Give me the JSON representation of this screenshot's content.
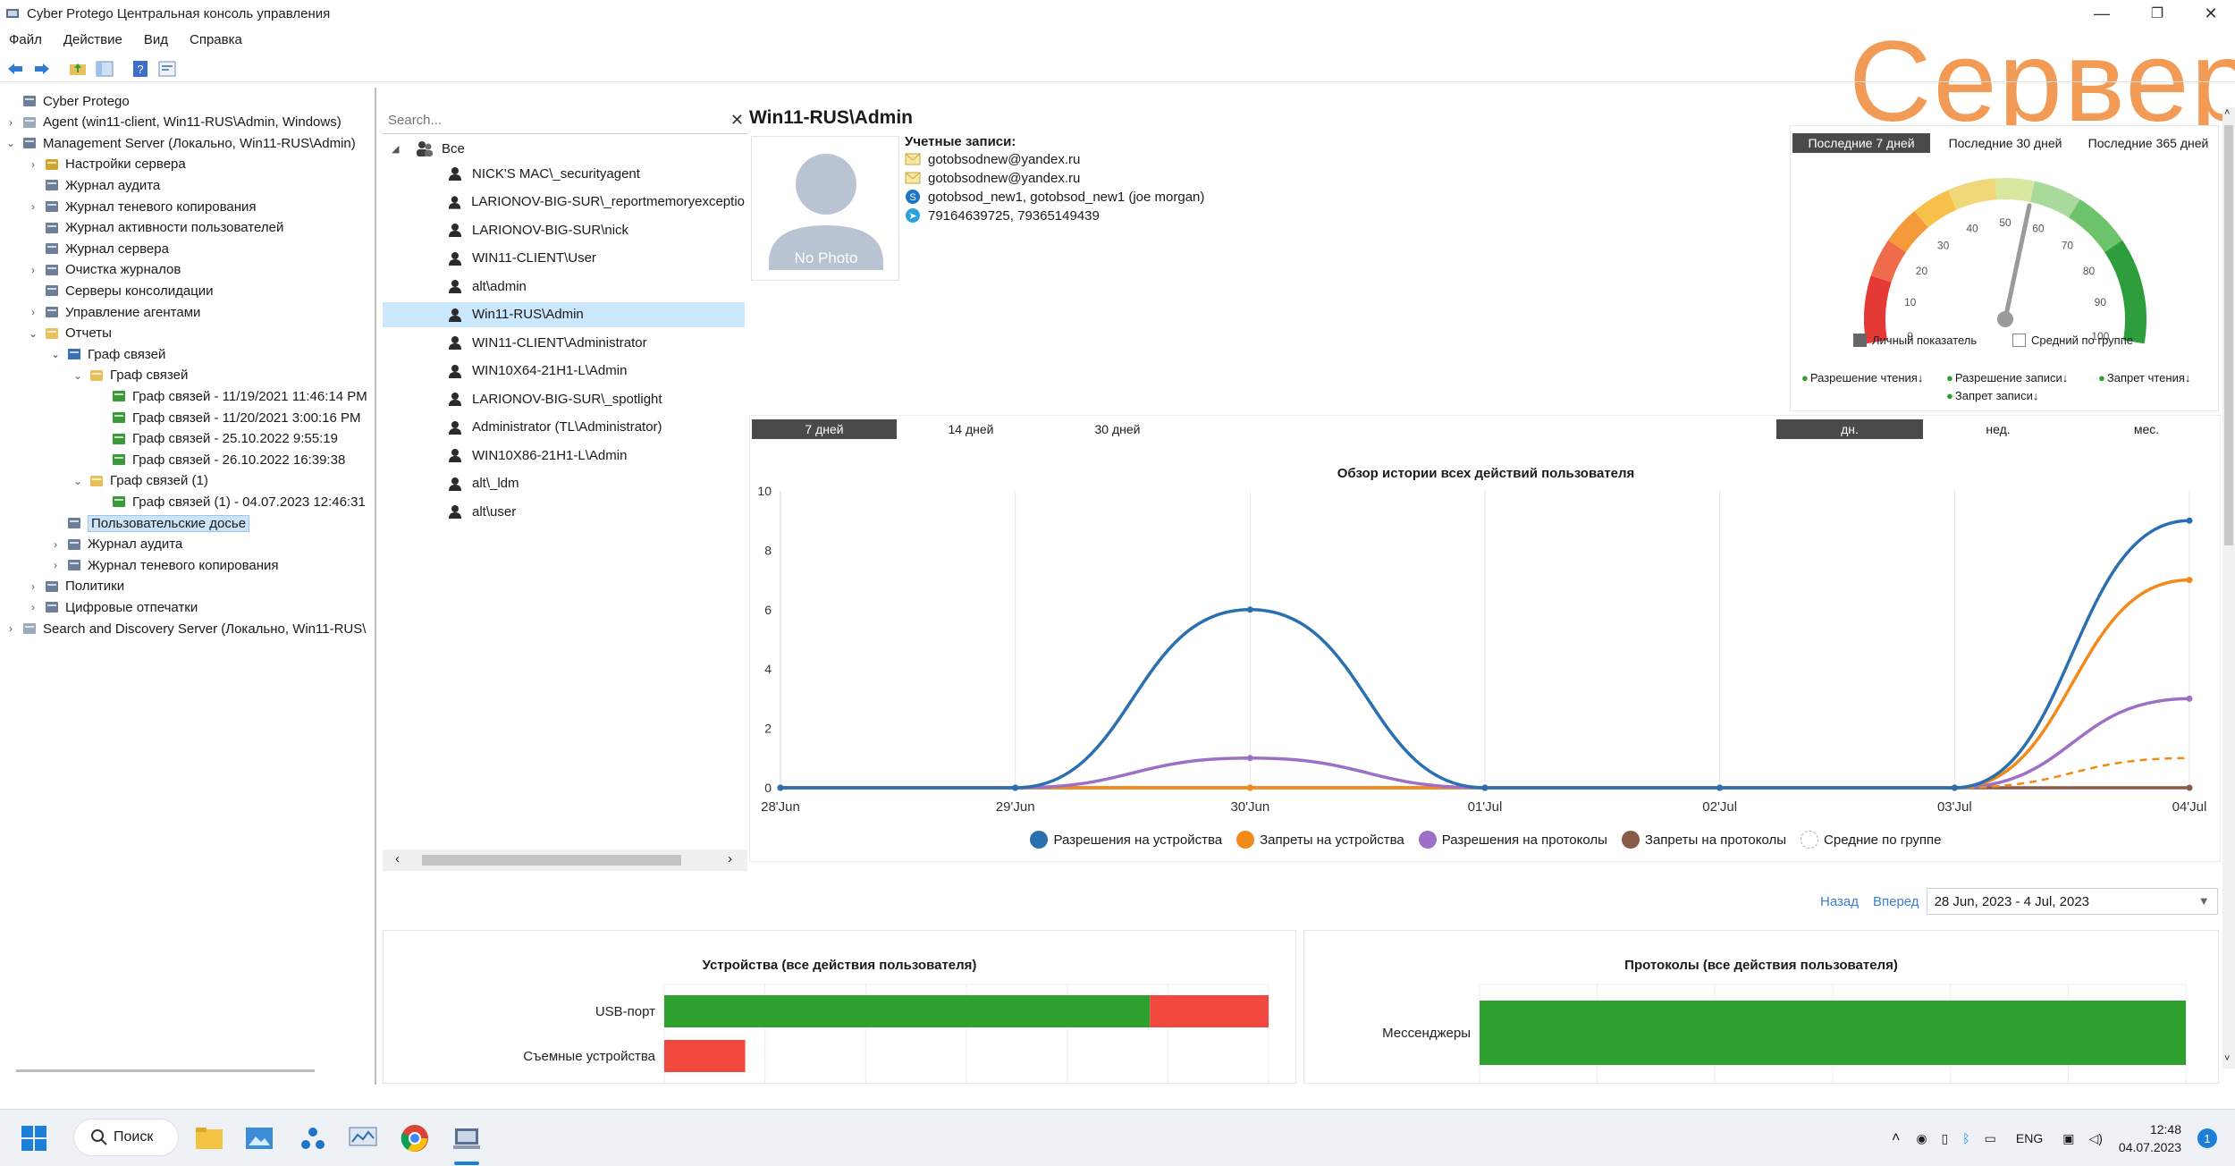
{
  "window": {
    "title": "Cyber Protego Центральная консоль управления",
    "minimize": "—",
    "maximize": "❐",
    "close": "✕"
  },
  "watermark": "Сервер",
  "menu": [
    "Файл",
    "Действие",
    "Вид",
    "Справка"
  ],
  "tree": [
    {
      "label": "Cyber Protego",
      "level": 0,
      "exp": ""
    },
    {
      "label": "Agent (win11-client, Win11-RUS\\Admin, Windows)",
      "level": 0,
      "exp": "›"
    },
    {
      "label": "Management Server (Локально, Win11-RUS\\Admin)",
      "level": 0,
      "exp": "⌄"
    },
    {
      "label": "Настройки сервера",
      "level": 1,
      "exp": "›"
    },
    {
      "label": "Журнал аудита",
      "level": 1,
      "exp": ""
    },
    {
      "label": "Журнал теневого копирования",
      "level": 1,
      "exp": "›"
    },
    {
      "label": "Журнал активности пользователей",
      "level": 1,
      "exp": ""
    },
    {
      "label": "Журнал сервера",
      "level": 1,
      "exp": ""
    },
    {
      "label": "Очистка журналов",
      "level": 1,
      "exp": "›"
    },
    {
      "label": "Серверы консолидации",
      "level": 1,
      "exp": ""
    },
    {
      "label": "Управление агентами",
      "level": 1,
      "exp": "›"
    },
    {
      "label": "Отчеты",
      "level": 1,
      "exp": "⌄"
    },
    {
      "label": "Граф связей",
      "level": 2,
      "exp": "⌄"
    },
    {
      "label": "Граф связей",
      "level": 3,
      "exp": "⌄"
    },
    {
      "label": "Граф связей - 11/19/2021 11:46:14 PM",
      "level": 4,
      "exp": ""
    },
    {
      "label": "Граф связей - 11/20/2021 3:00:16 PM",
      "level": 4,
      "exp": ""
    },
    {
      "label": "Граф связей - 25.10.2022 9:55:19",
      "level": 4,
      "exp": ""
    },
    {
      "label": "Граф связей - 26.10.2022 16:39:38",
      "level": 4,
      "exp": ""
    },
    {
      "label": "Граф связей (1)",
      "level": 3,
      "exp": "⌄"
    },
    {
      "label": "Граф связей (1) - 04.07.2023 12:46:31",
      "level": 4,
      "exp": ""
    },
    {
      "label": "Пользовательские досье",
      "level": 2,
      "exp": "",
      "selected": true
    },
    {
      "label": "Журнал аудита",
      "level": 2,
      "exp": "›"
    },
    {
      "label": "Журнал теневого копирования",
      "level": 2,
      "exp": "›"
    },
    {
      "label": "Политики",
      "level": 1,
      "exp": "›"
    },
    {
      "label": "Цифровые отпечатки",
      "level": 1,
      "exp": "›"
    },
    {
      "label": "Search and Discovery Server (Локально, Win11-RUS\\",
      "level": 0,
      "exp": "›"
    }
  ],
  "search": {
    "placeholder": "Search...",
    "close": "✕"
  },
  "users_root": "Все",
  "users": [
    "NICK'S MAC\\_securityagent",
    "LARIONOV-BIG-SUR\\_reportmemoryexceptio",
    "LARIONOV-BIG-SUR\\nick",
    "WIN11-CLIENT\\User",
    "alt\\admin",
    "Win11-RUS\\Admin",
    "WIN11-CLIENT\\Administrator",
    "WIN10X64-21H1-L\\Admin",
    "LARIONOV-BIG-SUR\\_spotlight",
    "Administrator (TL\\Administrator)",
    "WIN10X86-21H1-L\\Admin",
    "alt\\_ldm",
    "alt\\user"
  ],
  "selected_user_index": 5,
  "user": {
    "name": "Win11-RUS\\Admin",
    "no_photo": "No Photo",
    "accounts_label": "Учетные записи:",
    "accounts": [
      {
        "icon": "email-icon",
        "text": "gotobsodnew@yandex.ru"
      },
      {
        "icon": "email-icon",
        "text": "gotobsodnew@yandex.ru"
      },
      {
        "icon": "skype-icon",
        "text": "gotobsod_new1, gotobsod_new1 (joe morgan)"
      },
      {
        "icon": "telegram-icon",
        "text": "79164639725, 79365149439"
      }
    ]
  },
  "gauge": {
    "tabs": [
      "Последние 7 дней",
      "Последние 30 дней",
      "Последние 365 дней"
    ],
    "active_tab": 0,
    "value": 56,
    "ticks": [
      "0",
      "10",
      "20",
      "30",
      "40",
      "50",
      "60",
      "70",
      "80",
      "90",
      "100"
    ],
    "personal_label": "Личный показатель",
    "group_label": "Средний по группе",
    "legend": [
      "Разрешение чтения↓",
      "Разрешение записи↓",
      "Запрет чтения↓",
      "Запрет записи↓"
    ]
  },
  "chart_tabs_left": [
    "7 дней",
    "14 дней",
    "30 дней"
  ],
  "chart_tabs_right": [
    "дн.",
    "нед.",
    "мес."
  ],
  "chart_data": {
    "type": "line",
    "title": "Обзор истории всех действий пользователя",
    "categories": [
      "28'Jun",
      "29'Jun",
      "30'Jun",
      "01'Jul",
      "02'Jul",
      "03'Jul",
      "04'Jul"
    ],
    "y_ticks": [
      "0",
      "2",
      "4",
      "6",
      "8",
      "10"
    ],
    "ylim": [
      0,
      10
    ],
    "series": [
      {
        "name": "Разрешения на устройства",
        "color": "#2a6fb0",
        "values": [
          0,
          0,
          6,
          0,
          0,
          0,
          9
        ]
      },
      {
        "name": "Запреты на устройства",
        "color": "#f28a1a",
        "values": [
          0,
          0,
          0,
          0,
          0,
          0,
          7
        ]
      },
      {
        "name": "Разрешения на протоколы",
        "color": "#9d6fc6",
        "values": [
          0,
          0,
          1,
          0,
          0,
          0,
          3
        ]
      },
      {
        "name": "Запреты на протоколы",
        "color": "#8a5a48",
        "values": [
          0,
          0,
          0,
          0,
          0,
          0,
          0
        ]
      },
      {
        "name": "Средние по группе",
        "color": "#f28a1a",
        "dashed": true,
        "values": [
          null,
          null,
          null,
          null,
          null,
          0,
          1
        ]
      }
    ]
  },
  "date_nav": {
    "back": "Назад",
    "forward": "Вперед",
    "range": "28 Jun, 2023 - 4 Jul, 2023",
    "dropdown": "▼"
  },
  "bar_panels": [
    {
      "title": "Устройства (все действия пользователя)",
      "rows": [
        {
          "label": "USB-порт",
          "allowed": 9,
          "denied": 2.2
        },
        {
          "label": "Съемные устройства",
          "allowed": 0,
          "denied": 1.5
        }
      ],
      "colors": {
        "allowed": "#2ea02e",
        "denied": "#f0483e"
      }
    },
    {
      "title": "Протоколы (все действия пользователя)",
      "rows": [
        {
          "label": "Мессенджеры",
          "allowed": 3,
          "denied": 0
        }
      ],
      "colors": {
        "allowed": "#2ea02e",
        "denied": "#f0483e"
      }
    }
  ],
  "taskbar": {
    "search_label": "Поиск",
    "lang": "ENG",
    "time": "12:48",
    "date": "04.07.2023",
    "notifications": "1"
  }
}
